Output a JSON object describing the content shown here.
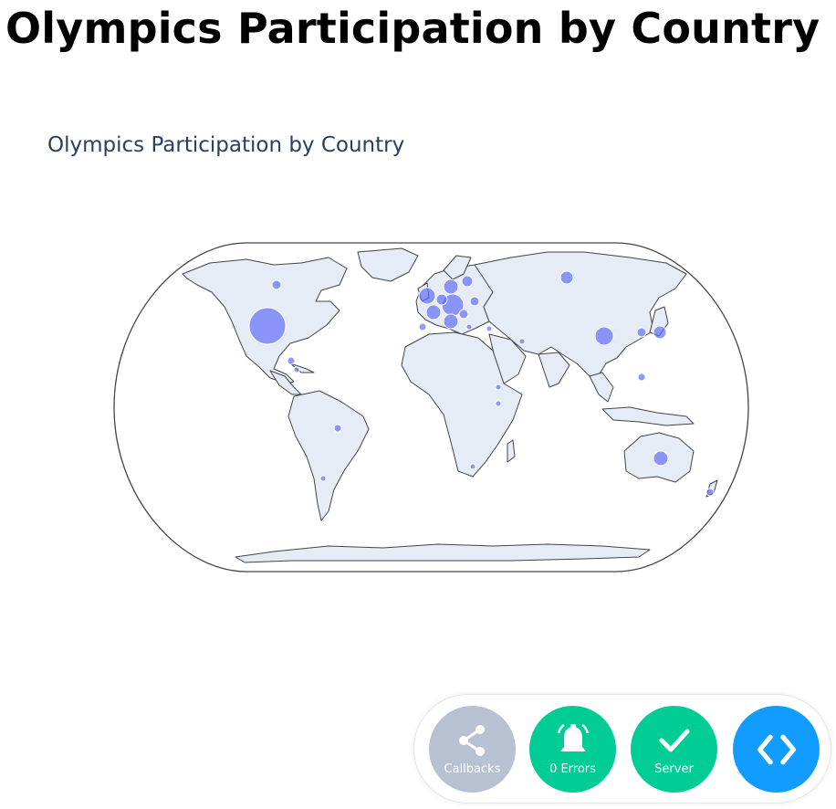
{
  "page": {
    "title": "Olympics Participation by Country"
  },
  "map": {
    "title": "Olympics Participation by Country",
    "projection": "natural earth",
    "land_color": "#e5ecf6",
    "coast_color": "#444444",
    "marker_color": "#636efa"
  },
  "devtools": {
    "callbacks_label": "Callbacks",
    "errors_label": "0 Errors",
    "server_label": "Server",
    "callbacks_color": "#b8c1d1",
    "errors_color": "#00cc96",
    "server_color": "#00cc96",
    "code_color": "#119dff"
  }
}
